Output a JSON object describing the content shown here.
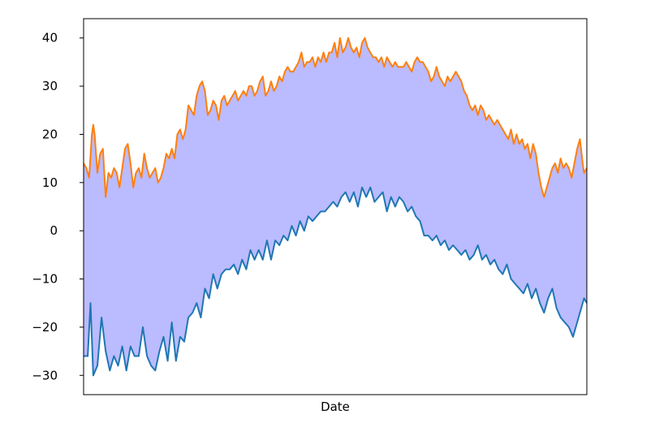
{
  "chart_data": {
    "type": "area",
    "title": "",
    "xlabel": "Date",
    "ylabel": "",
    "ylim": [
      -34,
      44
    ],
    "yticks": [
      -30,
      -20,
      -10,
      0,
      10,
      20,
      30,
      40
    ],
    "ytick_labels": [
      "−30",
      "−20",
      "−10",
      "0",
      "10",
      "20",
      "30",
      "40"
    ],
    "xticks": [],
    "grid": false,
    "legend": "none",
    "x_count": 366,
    "fill": {
      "between": [
        "upper",
        "lower"
      ],
      "color": "#bbbbff"
    },
    "series": [
      {
        "key": "lower",
        "color": "#1f77b4",
        "anchors": [
          [
            0,
            -26
          ],
          [
            3,
            -26
          ],
          [
            5,
            -15
          ],
          [
            7,
            -30
          ],
          [
            10,
            -28
          ],
          [
            13,
            -18
          ],
          [
            16,
            -25
          ],
          [
            19,
            -29
          ],
          [
            22,
            -26
          ],
          [
            25,
            -28
          ],
          [
            28,
            -24
          ],
          [
            31,
            -29
          ],
          [
            34,
            -24
          ],
          [
            37,
            -26
          ],
          [
            40,
            -26
          ],
          [
            43,
            -20
          ],
          [
            46,
            -26
          ],
          [
            49,
            -28
          ],
          [
            52,
            -29
          ],
          [
            55,
            -25
          ],
          [
            58,
            -22
          ],
          [
            61,
            -27
          ],
          [
            64,
            -19
          ],
          [
            67,
            -27
          ],
          [
            70,
            -22
          ],
          [
            73,
            -23
          ],
          [
            76,
            -18
          ],
          [
            79,
            -17
          ],
          [
            82,
            -15
          ],
          [
            85,
            -18
          ],
          [
            88,
            -12
          ],
          [
            91,
            -14
          ],
          [
            94,
            -9
          ],
          [
            97,
            -12
          ],
          [
            100,
            -9
          ],
          [
            103,
            -8
          ],
          [
            106,
            -8
          ],
          [
            109,
            -7
          ],
          [
            112,
            -9
          ],
          [
            115,
            -6
          ],
          [
            118,
            -8
          ],
          [
            121,
            -4
          ],
          [
            124,
            -6
          ],
          [
            127,
            -4
          ],
          [
            130,
            -6
          ],
          [
            133,
            -2
          ],
          [
            136,
            -6
          ],
          [
            139,
            -2
          ],
          [
            142,
            -3
          ],
          [
            145,
            -1
          ],
          [
            148,
            -2
          ],
          [
            151,
            1
          ],
          [
            154,
            -1
          ],
          [
            157,
            2
          ],
          [
            160,
            0
          ],
          [
            163,
            3
          ],
          [
            166,
            2
          ],
          [
            169,
            3
          ],
          [
            172,
            4
          ],
          [
            175,
            4
          ],
          [
            178,
            5
          ],
          [
            181,
            6
          ],
          [
            184,
            5
          ],
          [
            187,
            7
          ],
          [
            190,
            8
          ],
          [
            193,
            6
          ],
          [
            196,
            8
          ],
          [
            199,
            5
          ],
          [
            202,
            9
          ],
          [
            205,
            7
          ],
          [
            208,
            9
          ],
          [
            211,
            6
          ],
          [
            214,
            7
          ],
          [
            217,
            8
          ],
          [
            220,
            4
          ],
          [
            223,
            7
          ],
          [
            226,
            5
          ],
          [
            229,
            7
          ],
          [
            232,
            6
          ],
          [
            235,
            4
          ],
          [
            238,
            5
          ],
          [
            241,
            3
          ],
          [
            244,
            2
          ],
          [
            247,
            -1
          ],
          [
            250,
            -1
          ],
          [
            253,
            -2
          ],
          [
            256,
            -1
          ],
          [
            259,
            -3
          ],
          [
            262,
            -2
          ],
          [
            265,
            -4
          ],
          [
            268,
            -3
          ],
          [
            271,
            -4
          ],
          [
            274,
            -5
          ],
          [
            277,
            -4
          ],
          [
            280,
            -6
          ],
          [
            283,
            -5
          ],
          [
            286,
            -3
          ],
          [
            289,
            -6
          ],
          [
            292,
            -5
          ],
          [
            295,
            -7
          ],
          [
            298,
            -6
          ],
          [
            301,
            -8
          ],
          [
            304,
            -9
          ],
          [
            307,
            -7
          ],
          [
            310,
            -10
          ],
          [
            313,
            -11
          ],
          [
            316,
            -12
          ],
          [
            319,
            -13
          ],
          [
            322,
            -11
          ],
          [
            325,
            -14
          ],
          [
            328,
            -12
          ],
          [
            331,
            -15
          ],
          [
            334,
            -17
          ],
          [
            337,
            -14
          ],
          [
            340,
            -12
          ],
          [
            343,
            -16
          ],
          [
            346,
            -18
          ],
          [
            349,
            -19
          ],
          [
            352,
            -20
          ],
          [
            355,
            -22
          ],
          [
            358,
            -19
          ],
          [
            361,
            -16
          ],
          [
            363,
            -14
          ],
          [
            365,
            -15
          ]
        ]
      },
      {
        "key": "upper",
        "color": "#ff7f0e",
        "anchors": [
          [
            0,
            14
          ],
          [
            2,
            13
          ],
          [
            4,
            11
          ],
          [
            6,
            20
          ],
          [
            7,
            22
          ],
          [
            8,
            20
          ],
          [
            10,
            12
          ],
          [
            12,
            16
          ],
          [
            14,
            17
          ],
          [
            16,
            7
          ],
          [
            18,
            12
          ],
          [
            20,
            11
          ],
          [
            22,
            13
          ],
          [
            24,
            12
          ],
          [
            26,
            9
          ],
          [
            28,
            13
          ],
          [
            30,
            17
          ],
          [
            32,
            18
          ],
          [
            34,
            14
          ],
          [
            36,
            9
          ],
          [
            38,
            12
          ],
          [
            40,
            13
          ],
          [
            42,
            11
          ],
          [
            44,
            16
          ],
          [
            46,
            13
          ],
          [
            48,
            11
          ],
          [
            50,
            12
          ],
          [
            52,
            13
          ],
          [
            54,
            10
          ],
          [
            56,
            11
          ],
          [
            58,
            13
          ],
          [
            60,
            16
          ],
          [
            62,
            15
          ],
          [
            64,
            17
          ],
          [
            66,
            15
          ],
          [
            68,
            20
          ],
          [
            70,
            21
          ],
          [
            72,
            19
          ],
          [
            74,
            21
          ],
          [
            76,
            26
          ],
          [
            78,
            25
          ],
          [
            80,
            24
          ],
          [
            82,
            28
          ],
          [
            84,
            30
          ],
          [
            86,
            31
          ],
          [
            88,
            29
          ],
          [
            90,
            24
          ],
          [
            92,
            25
          ],
          [
            94,
            27
          ],
          [
            96,
            26
          ],
          [
            98,
            23
          ],
          [
            100,
            27
          ],
          [
            102,
            28
          ],
          [
            104,
            26
          ],
          [
            106,
            27
          ],
          [
            108,
            28
          ],
          [
            110,
            29
          ],
          [
            112,
            27
          ],
          [
            114,
            28
          ],
          [
            116,
            29
          ],
          [
            118,
            28
          ],
          [
            120,
            30
          ],
          [
            122,
            30
          ],
          [
            124,
            28
          ],
          [
            126,
            29
          ],
          [
            128,
            31
          ],
          [
            130,
            32
          ],
          [
            132,
            28
          ],
          [
            134,
            29
          ],
          [
            136,
            31
          ],
          [
            138,
            29
          ],
          [
            140,
            30
          ],
          [
            142,
            32
          ],
          [
            144,
            31
          ],
          [
            146,
            33
          ],
          [
            148,
            34
          ],
          [
            150,
            33
          ],
          [
            152,
            33
          ],
          [
            154,
            34
          ],
          [
            156,
            35
          ],
          [
            158,
            37
          ],
          [
            160,
            34
          ],
          [
            162,
            35
          ],
          [
            164,
            35
          ],
          [
            166,
            36
          ],
          [
            168,
            34
          ],
          [
            170,
            36
          ],
          [
            172,
            35
          ],
          [
            174,
            37
          ],
          [
            176,
            35
          ],
          [
            178,
            37
          ],
          [
            180,
            37
          ],
          [
            182,
            39
          ],
          [
            184,
            36
          ],
          [
            186,
            40
          ],
          [
            188,
            37
          ],
          [
            190,
            38
          ],
          [
            192,
            40
          ],
          [
            194,
            38
          ],
          [
            196,
            37
          ],
          [
            198,
            38
          ],
          [
            200,
            36
          ],
          [
            202,
            39
          ],
          [
            204,
            40
          ],
          [
            206,
            38
          ],
          [
            208,
            37
          ],
          [
            210,
            36
          ],
          [
            212,
            36
          ],
          [
            214,
            35
          ],
          [
            216,
            36
          ],
          [
            218,
            34
          ],
          [
            220,
            36
          ],
          [
            222,
            35
          ],
          [
            224,
            34
          ],
          [
            226,
            35
          ],
          [
            228,
            34
          ],
          [
            230,
            34
          ],
          [
            232,
            34
          ],
          [
            234,
            35
          ],
          [
            236,
            34
          ],
          [
            238,
            33
          ],
          [
            240,
            35
          ],
          [
            242,
            36
          ],
          [
            244,
            35
          ],
          [
            246,
            35
          ],
          [
            248,
            34
          ],
          [
            250,
            33
          ],
          [
            252,
            31
          ],
          [
            254,
            32
          ],
          [
            256,
            34
          ],
          [
            258,
            32
          ],
          [
            260,
            31
          ],
          [
            262,
            30
          ],
          [
            264,
            32
          ],
          [
            266,
            31
          ],
          [
            268,
            32
          ],
          [
            270,
            33
          ],
          [
            272,
            32
          ],
          [
            274,
            31
          ],
          [
            276,
            29
          ],
          [
            278,
            28
          ],
          [
            280,
            26
          ],
          [
            282,
            25
          ],
          [
            284,
            26
          ],
          [
            286,
            24
          ],
          [
            288,
            26
          ],
          [
            290,
            25
          ],
          [
            292,
            23
          ],
          [
            294,
            24
          ],
          [
            296,
            23
          ],
          [
            298,
            22
          ],
          [
            300,
            23
          ],
          [
            302,
            22
          ],
          [
            304,
            21
          ],
          [
            306,
            20
          ],
          [
            308,
            19
          ],
          [
            310,
            21
          ],
          [
            312,
            18
          ],
          [
            314,
            20
          ],
          [
            316,
            18
          ],
          [
            318,
            19
          ],
          [
            320,
            17
          ],
          [
            322,
            18
          ],
          [
            324,
            15
          ],
          [
            326,
            18
          ],
          [
            328,
            16
          ],
          [
            330,
            12
          ],
          [
            332,
            9
          ],
          [
            334,
            7
          ],
          [
            336,
            9
          ],
          [
            338,
            11
          ],
          [
            340,
            13
          ],
          [
            342,
            14
          ],
          [
            344,
            12
          ],
          [
            346,
            15
          ],
          [
            348,
            13
          ],
          [
            350,
            14
          ],
          [
            352,
            13
          ],
          [
            354,
            11
          ],
          [
            356,
            14
          ],
          [
            358,
            17
          ],
          [
            360,
            19
          ],
          [
            362,
            14
          ],
          [
            363,
            12
          ],
          [
            365,
            13
          ]
        ]
      }
    ]
  }
}
